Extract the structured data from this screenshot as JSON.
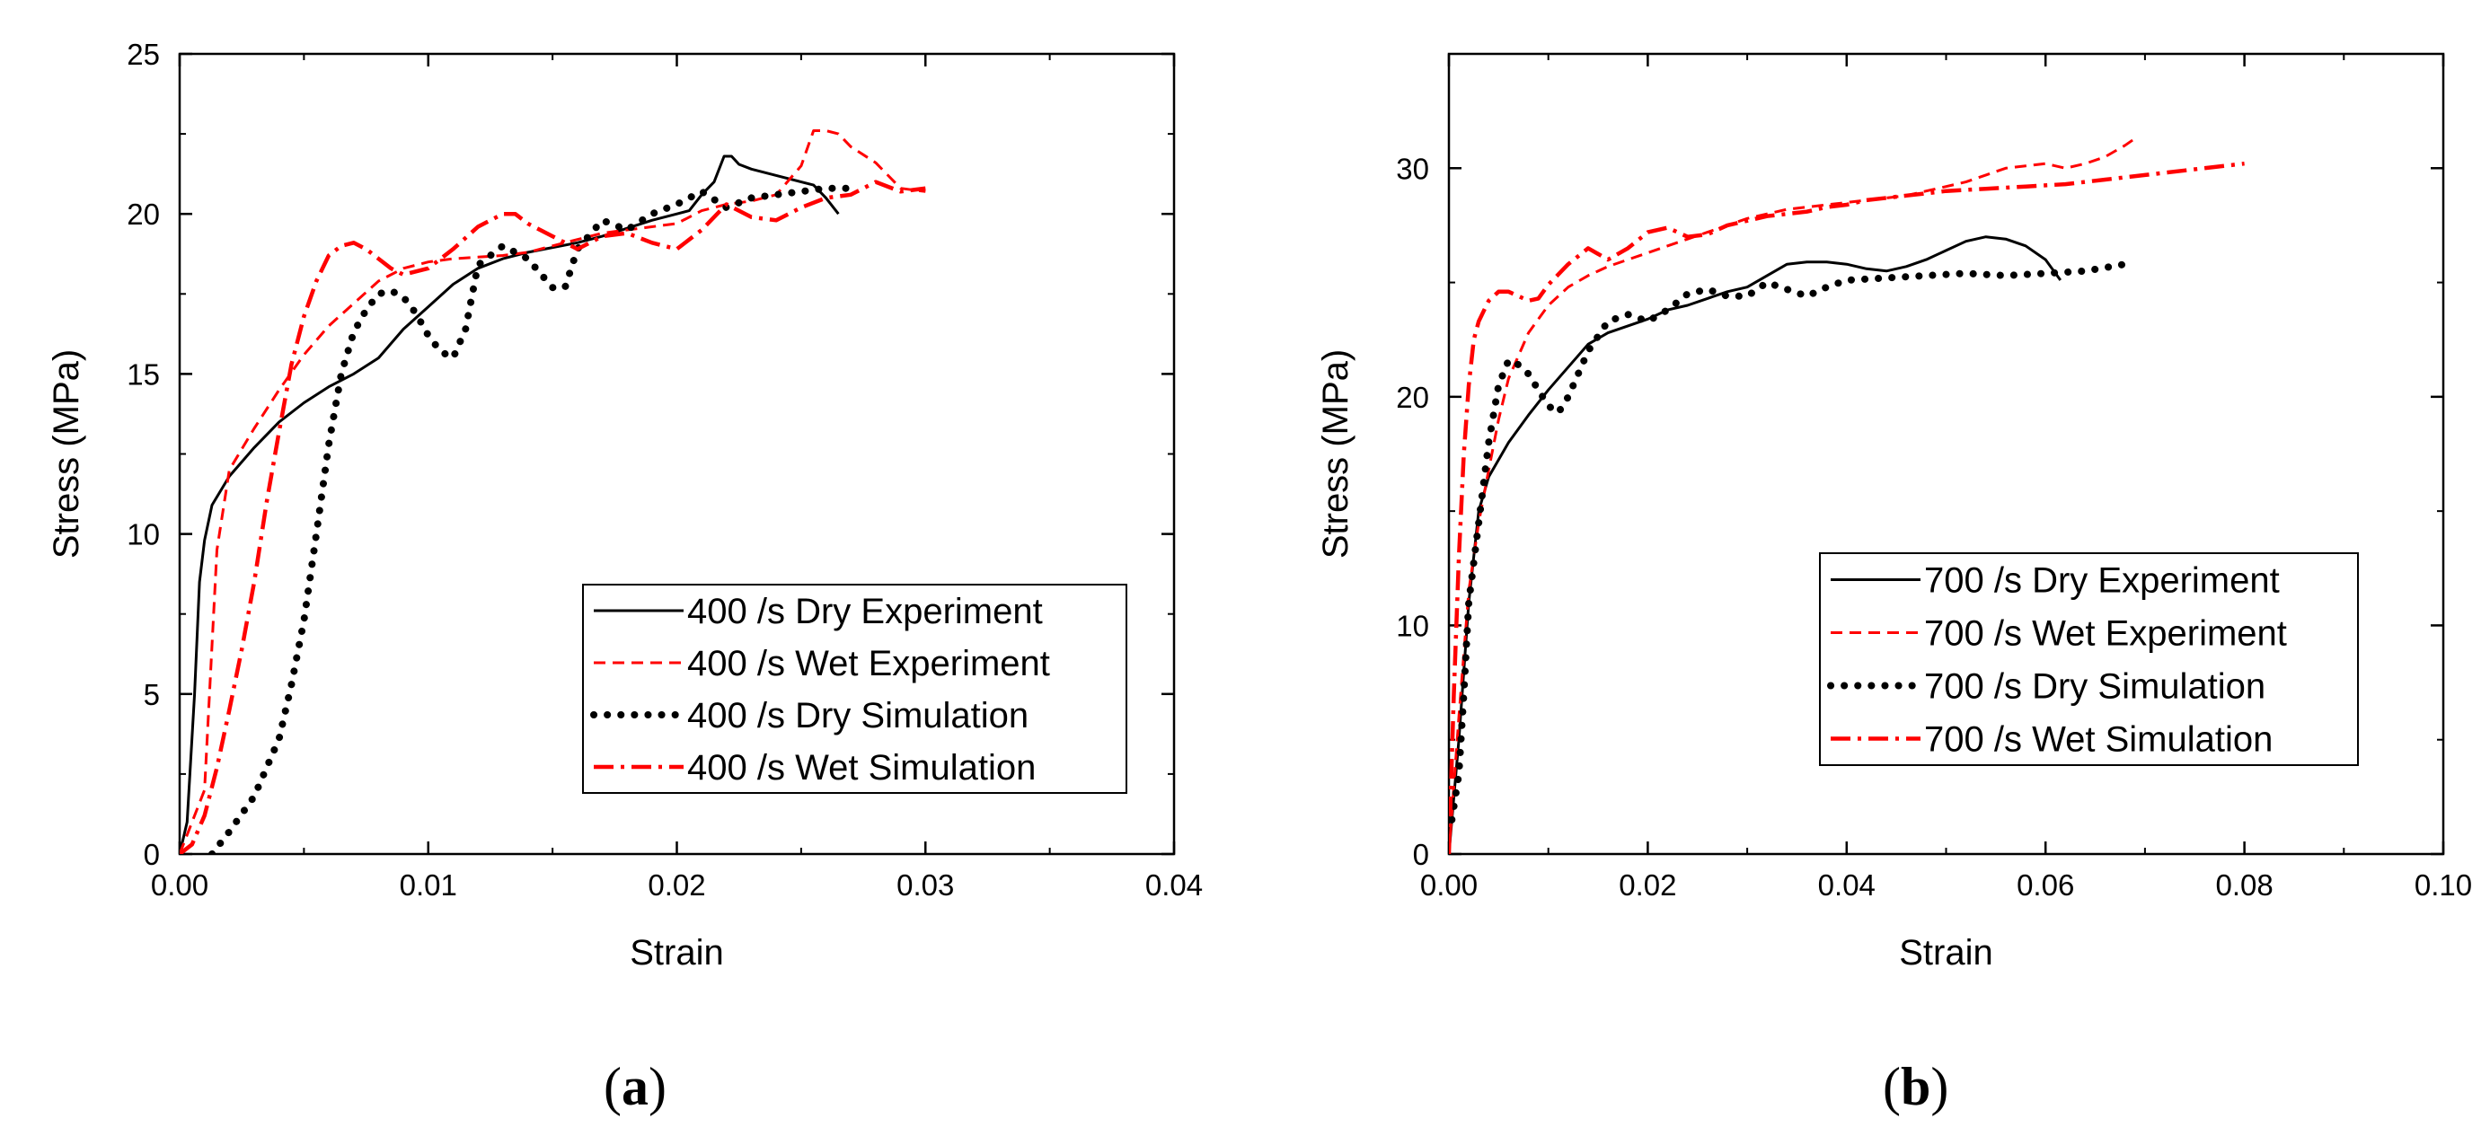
{
  "chart_data": [
    {
      "type": "line",
      "panel_label": "a",
      "title": "",
      "xlabel": "Strain",
      "ylabel": "Stress (MPa)",
      "xlim": [
        0,
        0.04
      ],
      "ylim": [
        0,
        25
      ],
      "xticks": [
        "0.00",
        "0.01",
        "0.02",
        "0.03",
        "0.04"
      ],
      "yticks": [
        "0",
        "5",
        "10",
        "15",
        "20",
        "25"
      ],
      "grid": false,
      "legend_position": "bottom-right",
      "series": [
        {
          "name": "400 /s Dry Experiment",
          "color": "#000000",
          "style": "solid",
          "x": [
            0,
            0.0003,
            0.0006,
            0.0008,
            0.001,
            0.0013,
            0.002,
            0.003,
            0.004,
            0.005,
            0.006,
            0.007,
            0.008,
            0.009,
            0.01,
            0.011,
            0.012,
            0.013,
            0.014,
            0.015,
            0.016,
            0.017,
            0.018,
            0.019,
            0.02,
            0.0205,
            0.021,
            0.0215,
            0.0219,
            0.0222,
            0.0225,
            0.023,
            0.024,
            0.025,
            0.0255,
            0.026,
            0.0265
          ],
          "y": [
            0,
            1.0,
            5.0,
            8.5,
            9.8,
            10.9,
            11.8,
            12.7,
            13.5,
            14.1,
            14.6,
            15.0,
            15.5,
            16.4,
            17.1,
            17.8,
            18.3,
            18.6,
            18.8,
            18.95,
            19.1,
            19.3,
            19.55,
            19.8,
            20.0,
            20.1,
            20.6,
            21.0,
            21.8,
            21.8,
            21.55,
            21.4,
            21.2,
            21.0,
            20.9,
            20.5,
            20.0
          ]
        },
        {
          "name": "400 /s Wet Experiment",
          "color": "#ff0000",
          "style": "dashed",
          "x": [
            0,
            0.001,
            0.0015,
            0.002,
            0.003,
            0.004,
            0.005,
            0.006,
            0.007,
            0.008,
            0.009,
            0.01,
            0.011,
            0.012,
            0.013,
            0.014,
            0.015,
            0.016,
            0.017,
            0.018,
            0.019,
            0.02,
            0.021,
            0.022,
            0.023,
            0.024,
            0.025,
            0.0255,
            0.026,
            0.0265,
            0.027,
            0.028,
            0.029,
            0.03
          ],
          "y": [
            0,
            2.0,
            9.5,
            12.0,
            13.3,
            14.5,
            15.6,
            16.5,
            17.2,
            17.9,
            18.3,
            18.5,
            18.6,
            18.65,
            18.7,
            18.8,
            19.0,
            19.2,
            19.4,
            19.5,
            19.6,
            19.7,
            20.1,
            20.3,
            20.4,
            20.6,
            21.5,
            22.6,
            22.6,
            22.5,
            22.1,
            21.6,
            20.8,
            20.7
          ]
        },
        {
          "name": "400 /s Dry Simulation",
          "color": "#000000",
          "style": "dotted",
          "x": [
            0.0013,
            0.002,
            0.003,
            0.004,
            0.0045,
            0.005,
            0.0055,
            0.006,
            0.0065,
            0.007,
            0.0075,
            0.008,
            0.0085,
            0.009,
            0.0095,
            0.01,
            0.0105,
            0.011,
            0.0115,
            0.012,
            0.013,
            0.014,
            0.015,
            0.0155,
            0.016,
            0.017,
            0.018,
            0.019,
            0.02,
            0.021,
            0.022,
            0.023,
            0.024,
            0.025,
            0.026,
            0.027
          ],
          "y": [
            0,
            0.7,
            1.8,
            3.6,
            5.3,
            7.3,
            10.0,
            12.8,
            15.0,
            16.3,
            17.0,
            17.5,
            17.6,
            17.4,
            16.9,
            16.2,
            15.7,
            15.5,
            16.4,
            18.4,
            19.0,
            18.6,
            17.7,
            17.7,
            18.9,
            19.8,
            19.5,
            20.0,
            20.3,
            20.7,
            20.2,
            20.5,
            20.6,
            20.7,
            20.8,
            20.8
          ]
        },
        {
          "name": "400 /s Wet Simulation",
          "color": "#ff0000",
          "style": "dashdot",
          "x": [
            0,
            0.0005,
            0.001,
            0.0015,
            0.002,
            0.0025,
            0.003,
            0.0035,
            0.004,
            0.0045,
            0.005,
            0.0055,
            0.006,
            0.0065,
            0.007,
            0.0075,
            0.008,
            0.0085,
            0.009,
            0.01,
            0.011,
            0.012,
            0.013,
            0.0135,
            0.014,
            0.015,
            0.016,
            0.017,
            0.018,
            0.019,
            0.02,
            0.021,
            0.022,
            0.023,
            0.024,
            0.025,
            0.026,
            0.027,
            0.028,
            0.029,
            0.03
          ],
          "y": [
            0,
            0.3,
            1.2,
            2.7,
            4.5,
            6.4,
            8.5,
            11.0,
            13.2,
            15.3,
            16.8,
            17.9,
            18.7,
            19.0,
            19.1,
            18.9,
            18.6,
            18.3,
            18.1,
            18.3,
            18.9,
            19.6,
            20.0,
            20.0,
            19.7,
            19.3,
            18.9,
            19.3,
            19.4,
            19.1,
            18.9,
            19.5,
            20.3,
            19.9,
            19.8,
            20.2,
            20.5,
            20.6,
            21.0,
            20.7,
            20.8
          ]
        }
      ]
    },
    {
      "type": "line",
      "panel_label": "b",
      "title": "",
      "xlabel": "Strain",
      "ylabel": "Stress (MPa)",
      "xlim": [
        0,
        0.1
      ],
      "ylim": [
        0,
        35
      ],
      "xticks": [
        "0.00",
        "0.02",
        "0.04",
        "0.06",
        "0.08",
        "0.10"
      ],
      "yticks": [
        "0",
        "10",
        "20",
        "30"
      ],
      "grid": false,
      "legend_position": "right",
      "series": [
        {
          "name": "700 /s Dry Experiment",
          "color": "#000000",
          "style": "solid",
          "x": [
            0,
            0.001,
            0.002,
            0.003,
            0.004,
            0.006,
            0.008,
            0.01,
            0.012,
            0.014,
            0.016,
            0.018,
            0.02,
            0.022,
            0.024,
            0.026,
            0.028,
            0.03,
            0.032,
            0.034,
            0.036,
            0.038,
            0.04,
            0.042,
            0.044,
            0.046,
            0.048,
            0.05,
            0.052,
            0.054,
            0.056,
            0.058,
            0.06,
            0.0615
          ],
          "y": [
            0,
            5.0,
            11.0,
            15.0,
            16.5,
            18.0,
            19.2,
            20.3,
            21.3,
            22.3,
            22.8,
            23.1,
            23.4,
            23.8,
            24.0,
            24.3,
            24.6,
            24.8,
            25.3,
            25.8,
            25.9,
            25.9,
            25.8,
            25.6,
            25.5,
            25.7,
            26.0,
            26.4,
            26.8,
            27.0,
            26.9,
            26.6,
            26.0,
            25.1
          ]
        },
        {
          "name": "700 /s Wet Experiment",
          "color": "#ff0000",
          "style": "dashed",
          "x": [
            0,
            0.001,
            0.002,
            0.003,
            0.004,
            0.005,
            0.006,
            0.008,
            0.01,
            0.012,
            0.014,
            0.016,
            0.018,
            0.02,
            0.022,
            0.024,
            0.026,
            0.028,
            0.03,
            0.032,
            0.034,
            0.036,
            0.038,
            0.04,
            0.042,
            0.044,
            0.046,
            0.048,
            0.05,
            0.052,
            0.054,
            0.056,
            0.058,
            0.06,
            0.062,
            0.064,
            0.066,
            0.068,
            0.069
          ],
          "y": [
            0,
            6.0,
            11.5,
            14.5,
            16.8,
            19.0,
            20.8,
            22.8,
            24.0,
            24.8,
            25.3,
            25.7,
            26.0,
            26.3,
            26.6,
            26.9,
            27.2,
            27.5,
            27.8,
            28.0,
            28.2,
            28.3,
            28.4,
            28.5,
            28.6,
            28.7,
            28.8,
            29.0,
            29.2,
            29.4,
            29.7,
            30.0,
            30.1,
            30.2,
            30.0,
            30.2,
            30.5,
            31.0,
            31.3
          ]
        },
        {
          "name": "700 /s Dry Simulation",
          "color": "#000000",
          "style": "dotted",
          "x": [
            0.0003,
            0.001,
            0.0015,
            0.002,
            0.003,
            0.004,
            0.005,
            0.006,
            0.007,
            0.008,
            0.009,
            0.01,
            0.011,
            0.012,
            0.014,
            0.016,
            0.018,
            0.02,
            0.022,
            0.024,
            0.026,
            0.028,
            0.03,
            0.032,
            0.034,
            0.036,
            0.038,
            0.04,
            0.044,
            0.048,
            0.052,
            0.056,
            0.06,
            0.064,
            0.068
          ],
          "y": [
            1.5,
            3.5,
            7.0,
            11.0,
            14.5,
            18.0,
            20.5,
            21.6,
            21.4,
            21.0,
            20.3,
            19.6,
            19.3,
            20.0,
            22.0,
            23.3,
            23.6,
            23.3,
            23.8,
            24.5,
            24.7,
            24.4,
            24.4,
            25.0,
            24.7,
            24.4,
            24.8,
            25.1,
            25.2,
            25.3,
            25.4,
            25.3,
            25.4,
            25.5,
            25.8
          ]
        },
        {
          "name": "700 /s Wet Simulation",
          "color": "#ff0000",
          "style": "dashdot",
          "x": [
            0,
            0.0005,
            0.001,
            0.0015,
            0.002,
            0.0025,
            0.003,
            0.004,
            0.005,
            0.006,
            0.007,
            0.008,
            0.009,
            0.01,
            0.012,
            0.014,
            0.016,
            0.018,
            0.02,
            0.022,
            0.024,
            0.026,
            0.028,
            0.03,
            0.032,
            0.034,
            0.036,
            0.038,
            0.04,
            0.042,
            0.044,
            0.046,
            0.048,
            0.05,
            0.054,
            0.058,
            0.062,
            0.066,
            0.07,
            0.074,
            0.078,
            0.08
          ],
          "y": [
            0,
            7.0,
            13.0,
            17.5,
            20.5,
            22.5,
            23.3,
            24.2,
            24.6,
            24.6,
            24.4,
            24.2,
            24.3,
            24.9,
            25.8,
            26.5,
            26.0,
            26.5,
            27.2,
            27.4,
            27.0,
            27.1,
            27.5,
            27.7,
            27.9,
            28.0,
            28.1,
            28.3,
            28.4,
            28.6,
            28.7,
            28.8,
            28.9,
            29.0,
            29.1,
            29.2,
            29.3,
            29.5,
            29.7,
            29.9,
            30.1,
            30.2
          ]
        }
      ]
    }
  ]
}
